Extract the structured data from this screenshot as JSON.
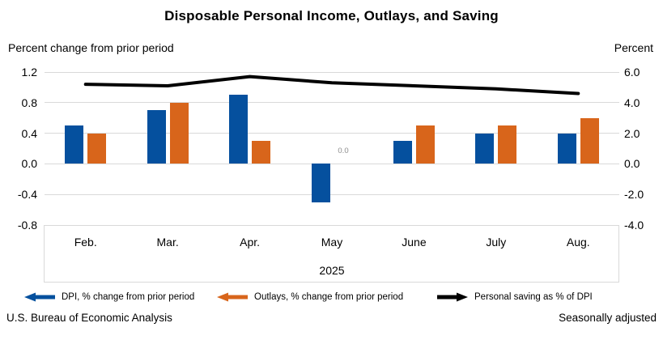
{
  "title": "Disposable Personal Income, Outlays, and Saving",
  "left_axis_note": "Percent change from prior period",
  "right_axis_note": "Percent",
  "colors": {
    "dpi_blue": "#05509e",
    "outlays_orange": "#d8651b",
    "saving_black": "#000000",
    "gridline": "#d9d9d9",
    "annotation_gray": "#8c8c8c"
  },
  "chart_data": {
    "type": "bar",
    "subtype": "grouped bars with overlaid line, dual y-axes",
    "categories": [
      "Feb.",
      "Mar.",
      "Apr.",
      "May",
      "June",
      "July",
      "Aug."
    ],
    "x_axis_year": "2025",
    "series": [
      {
        "name": "DPI, % change from prior period",
        "type": "bar",
        "axis": "left",
        "color": "#05509e",
        "values": [
          0.5,
          0.7,
          0.9,
          -0.5,
          0.3,
          0.4,
          0.4
        ]
      },
      {
        "name": "Outlays, % change from prior period",
        "type": "bar",
        "axis": "left",
        "color": "#d8651b",
        "values": [
          0.4,
          0.8,
          0.3,
          0.0,
          0.5,
          0.5,
          0.6
        ]
      },
      {
        "name": "Personal saving as % of DPI",
        "type": "line",
        "axis": "right",
        "color": "#000000",
        "values": [
          5.2,
          5.1,
          5.7,
          5.3,
          5.1,
          4.9,
          4.6
        ]
      }
    ],
    "left_axis": {
      "min": -0.8,
      "max": 1.2,
      "ticks": [
        "1.2",
        "0.8",
        "0.4",
        "0.0",
        "-0.4",
        "-0.8"
      ]
    },
    "right_axis": {
      "min": -4.0,
      "max": 6.0,
      "ticks": [
        "6.0",
        "4.0",
        "2.0",
        "0.0",
        "-2.0",
        "-4.0"
      ]
    },
    "grid": "horizontal gridlines on",
    "annotations": [
      {
        "text": "0.0",
        "category_index": 3,
        "series_index": 1,
        "note": "zero-height Outlays bar in May"
      }
    ],
    "legend_position": "bottom"
  },
  "legend": [
    {
      "label": "DPI, % change from prior period",
      "color": "#05509e",
      "marker": "left-arrow"
    },
    {
      "label": "Outlays, % change from prior period",
      "color": "#d8651b",
      "marker": "left-arrow"
    },
    {
      "label": "Personal saving as % of DPI",
      "color": "#000000",
      "marker": "right-arrow"
    }
  ],
  "footer": {
    "left": "U.S. Bureau of Economic Analysis",
    "right": "Seasonally adjusted"
  }
}
